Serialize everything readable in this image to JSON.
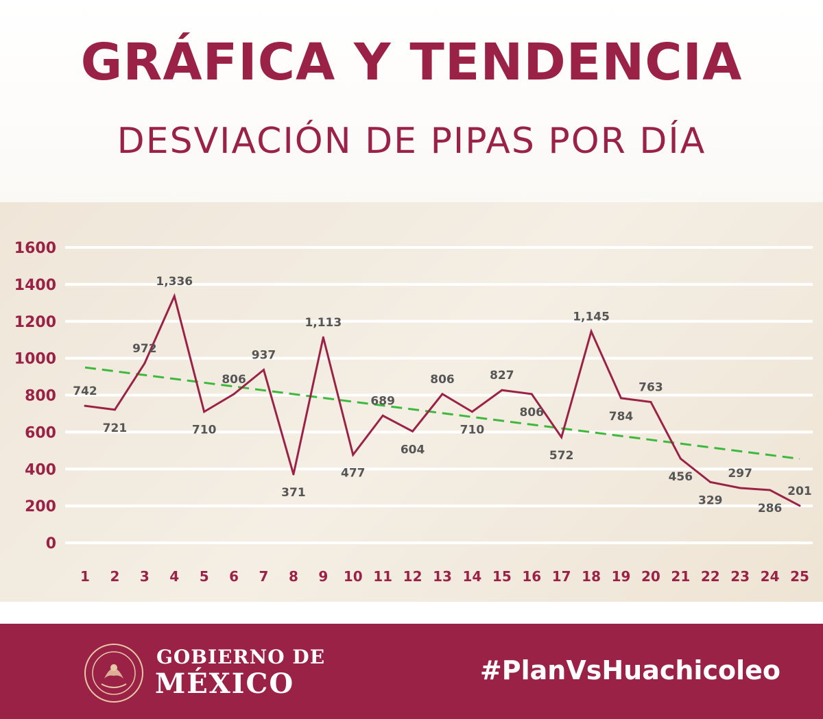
{
  "header": {
    "title": "GRÁFICA Y TENDENCIA",
    "subtitle": "DESVIACIÓN DE PIPAS POR DÍA"
  },
  "footer": {
    "gov_line1": "GOBIERNO DE",
    "gov_line2": "MÉXICO",
    "hashtag": "#PlanVsHuachicoleo",
    "seal_text": "ESTADOS UNIDOS MEXICANOS"
  },
  "colors": {
    "brand": "#9b2247",
    "trend": "#3cb93c",
    "label": "#555555",
    "grid": "#ffffff"
  },
  "chart_data": {
    "type": "line",
    "title": "",
    "xlabel": "",
    "ylabel": "",
    "ylim": [
      0,
      1600
    ],
    "yticks": [
      0,
      200,
      400,
      600,
      800,
      1000,
      1200,
      1400,
      1600
    ],
    "grid": true,
    "x": [
      1,
      2,
      3,
      4,
      5,
      6,
      7,
      8,
      9,
      10,
      11,
      12,
      13,
      14,
      15,
      16,
      17,
      18,
      19,
      20,
      21,
      22,
      23,
      24,
      25
    ],
    "series": [
      {
        "values": [
          742,
          721,
          972,
          1336,
          710,
          806,
          937,
          371,
          1113,
          477,
          689,
          604,
          806,
          710,
          827,
          806,
          572,
          1145,
          784,
          763,
          456,
          329,
          297,
          286,
          201
        ]
      }
    ],
    "value_labels": [
      "742",
      "721",
      "972",
      "1,336",
      "710",
      "806",
      "937",
      "371",
      "1,113",
      "477",
      "689",
      "604",
      "806",
      "710",
      "827",
      "806",
      "572",
      "1,145",
      "784",
      "763",
      "456",
      "329",
      "297",
      "286",
      "201"
    ],
    "trendline": {
      "start": 950,
      "end": 455
    }
  }
}
